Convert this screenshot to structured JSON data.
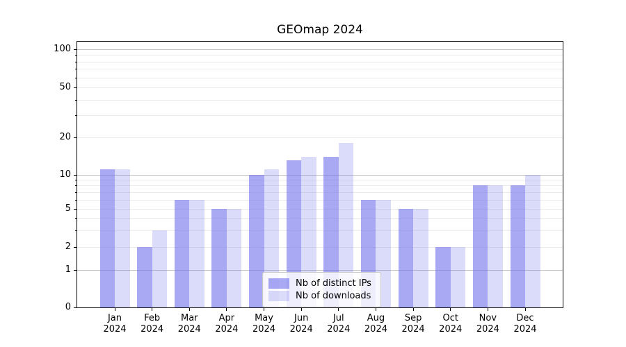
{
  "title": "GEOmap 2024",
  "chart_data": {
    "type": "bar",
    "title": "GEOmap 2024",
    "categories": [
      "Jan",
      "Feb",
      "Mar",
      "Apr",
      "May",
      "Jun",
      "Jul",
      "Aug",
      "Sep",
      "Oct",
      "Nov",
      "Dec"
    ],
    "x_year": "2024",
    "series": [
      {
        "key": "distinct-ips",
        "name": "Nb of distinct IPs",
        "values": [
          11,
          2,
          6,
          5,
          10,
          13,
          14,
          6,
          5,
          2,
          8,
          8
        ]
      },
      {
        "key": "downloads",
        "name": "Nb of downloads",
        "values": [
          11,
          3,
          6,
          5,
          11,
          14,
          18,
          6,
          5,
          2,
          8,
          10
        ]
      }
    ],
    "xlabel": "",
    "ylabel": "",
    "y_axis": {
      "scale": "symlog",
      "tick_labels": [
        "100",
        "50",
        "20",
        "10",
        "5",
        "2",
        "1",
        "0"
      ],
      "tick_values": [
        100,
        50,
        20,
        10,
        5,
        2,
        1,
        0
      ],
      "major_gridlines": [
        1,
        10,
        100
      ],
      "minor_gridlines": [
        2,
        3,
        4,
        5,
        6,
        7,
        8,
        9,
        20,
        30,
        40,
        50,
        60,
        70,
        80,
        90
      ],
      "ylim": [
        0,
        116
      ]
    },
    "legend": {
      "position": "lower center",
      "entries": [
        "Nb of distinct IPs",
        "Nb of downloads"
      ]
    },
    "grid": true
  },
  "colors": {
    "bar_base_rgb": "110,110,235",
    "bar_dark_alpha": 0.6,
    "bar_light_alpha": 0.25,
    "major_grid": "#c3c3c3",
    "minor_grid": "#ebebeb",
    "spine": "#000000",
    "text": "#000000",
    "legend_border": "#cccccc",
    "legend_bg": "rgba(255,255,255,0.8)"
  }
}
